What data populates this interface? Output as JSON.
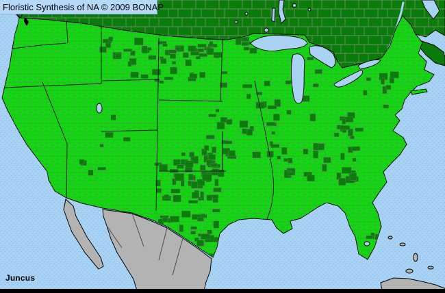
{
  "header": {
    "title": "Floristic Synthesis of NA © 2009 BONAP"
  },
  "footer": {
    "taxon_label": "Juncus"
  },
  "map": {
    "colors": {
      "ocean": "#a9d2f5",
      "ocean_dot": "#8fc2e9",
      "panel": "#b6d9f9",
      "panel_edge": "#7fb0e0",
      "county_present": "#00e400",
      "region_present_dark": "#0a7c0a",
      "no_data_land": "#b3b3b3",
      "lake_water": "#a9d2f5",
      "county_border": "#707f6e",
      "canada_division_border": "#6f8a6c",
      "coast_outline": "#000000",
      "bottom_bar": "#000000"
    }
  }
}
